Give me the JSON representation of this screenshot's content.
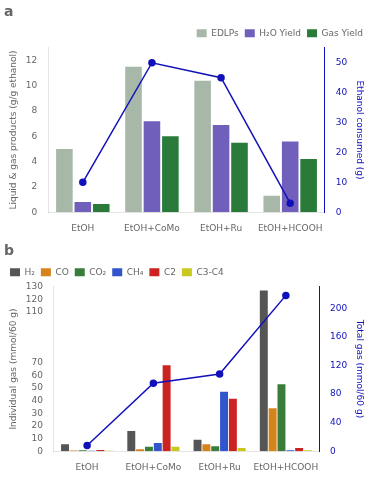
{
  "chart_data": [
    {
      "type": "bar",
      "title": "a",
      "categories": [
        "EtOH",
        "EtOH+CoMo",
        "EtOH+Ru",
        "EtOH+HCOOH"
      ],
      "series": [
        {
          "name": "EDLPs",
          "color": "#a8b8a8",
          "values": [
            5.0,
            11.5,
            10.4,
            1.3
          ]
        },
        {
          "name": "H₂O Yield",
          "color": "#7060bb",
          "values": [
            0.8,
            7.2,
            6.9,
            5.6
          ]
        },
        {
          "name": "Gas Yield",
          "color": "#2a7a3a",
          "values": [
            0.65,
            6.0,
            5.5,
            4.2
          ]
        },
        {
          "type": "line",
          "color": "#1111bb",
          "marker": "circle",
          "axis": "y2",
          "values": [
            10,
            50,
            45,
            3
          ]
        }
      ],
      "ylabel": "Liquid & gas products (g/g ethanol)",
      "y2label": "Ethanol consumed (g)",
      "ylim": [
        0,
        13
      ],
      "yticks": [
        0,
        2,
        4,
        6,
        8,
        10,
        12
      ],
      "y2lim": [
        0,
        55
      ],
      "y2ticks": [
        0,
        10,
        20,
        30,
        40,
        50
      ],
      "legend": "upper right",
      "grid": false
    },
    {
      "type": "bar",
      "title": "b",
      "categories": [
        "EtOH",
        "EtOH+CoMo",
        "EtOH+Ru",
        "EtOH+HCOOH"
      ],
      "series": [
        {
          "name": "H₂",
          "color": "#555555",
          "values": [
            5.5,
            16.0,
            9.0,
            127.0
          ]
        },
        {
          "name": "CO",
          "color": "#d4841a",
          "values": [
            0.5,
            1.5,
            5.5,
            34.0
          ]
        },
        {
          "name": "CO₂",
          "color": "#3a7d3a",
          "values": [
            0.8,
            3.5,
            4.0,
            53.0
          ]
        },
        {
          "name": "CH₄",
          "color": "#3355cc",
          "values": [
            0.3,
            6.5,
            47.0,
            0.8
          ]
        },
        {
          "name": "C2",
          "color": "#cc2222",
          "values": [
            1.0,
            68.0,
            41.5,
            2.5
          ]
        },
        {
          "name": "C3-C4",
          "color": "#c8c820",
          "values": [
            0.3,
            3.5,
            2.5,
            0.8
          ]
        },
        {
          "type": "line",
          "color": "#1111bb",
          "marker": "circle",
          "axis": "y2",
          "values": [
            8,
            95,
            108,
            218
          ]
        }
      ],
      "ylabel": "Individual gas (mmol/60 g)",
      "y2label": "Total gas (mmol/60 g)",
      "ylim": [
        0,
        130
      ],
      "yticks": [
        0,
        10,
        20,
        30,
        40,
        50,
        60,
        70,
        110,
        120,
        130
      ],
      "y2lim": [
        0,
        230
      ],
      "y2ticks": [
        0,
        40,
        80,
        120,
        160,
        200
      ],
      "legend": "upper left",
      "grid": false
    }
  ]
}
